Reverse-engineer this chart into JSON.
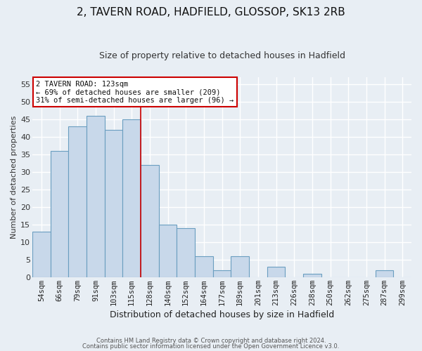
{
  "title": "2, TAVERN ROAD, HADFIELD, GLOSSOP, SK13 2RB",
  "subtitle": "Size of property relative to detached houses in Hadfield",
  "xlabel": "Distribution of detached houses by size in Hadfield",
  "ylabel": "Number of detached properties",
  "bar_labels": [
    "54sqm",
    "66sqm",
    "79sqm",
    "91sqm",
    "103sqm",
    "115sqm",
    "128sqm",
    "140sqm",
    "152sqm",
    "164sqm",
    "177sqm",
    "189sqm",
    "201sqm",
    "213sqm",
    "226sqm",
    "238sqm",
    "250sqm",
    "262sqm",
    "275sqm",
    "287sqm",
    "299sqm"
  ],
  "bar_values": [
    13,
    36,
    43,
    46,
    42,
    45,
    32,
    15,
    14,
    6,
    2,
    6,
    0,
    3,
    0,
    1,
    0,
    0,
    0,
    2,
    0
  ],
  "bar_color": "#c8d8ea",
  "bar_edge_color": "#6a9ec0",
  "ylim": [
    0,
    57
  ],
  "yticks": [
    0,
    5,
    10,
    15,
    20,
    25,
    30,
    35,
    40,
    45,
    50,
    55
  ],
  "marker_bin_index": 5,
  "marker_color": "#cc0000",
  "annotation_title": "2 TAVERN ROAD: 123sqm",
  "annotation_line1": "← 69% of detached houses are smaller (209)",
  "annotation_line2": "31% of semi-detached houses are larger (96) →",
  "annotation_box_color": "#cc0000",
  "footnote1": "Contains HM Land Registry data © Crown copyright and database right 2024.",
  "footnote2": "Contains public sector information licensed under the Open Government Licence v3.0.",
  "background_color": "#e8eef4",
  "plot_background": "#e8eef4",
  "grid_color": "#ffffff",
  "title_fontsize": 11,
  "subtitle_fontsize": 9,
  "xlabel_fontsize": 9,
  "ylabel_fontsize": 8,
  "tick_fontsize": 7.5,
  "annotation_fontsize": 7.5,
  "footnote_fontsize": 6
}
